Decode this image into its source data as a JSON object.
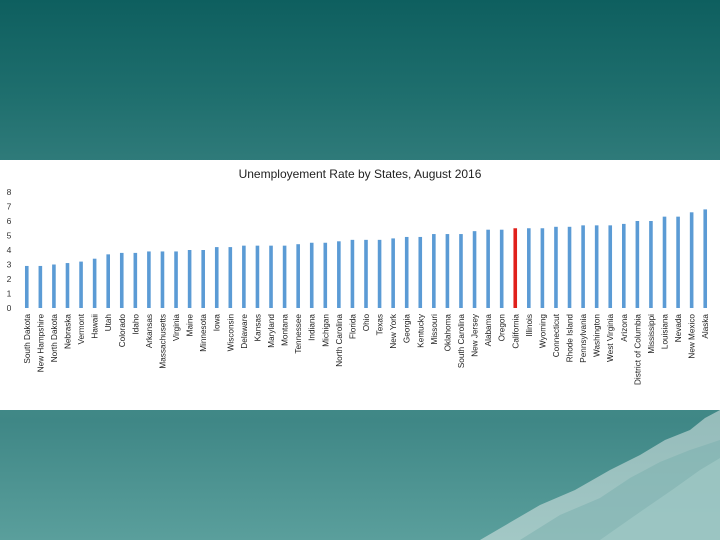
{
  "slide": {
    "background_top": "#0e5f5f",
    "background_bottom": "#5a9f9c",
    "decoration": "mountain-graphic"
  },
  "chart_data": {
    "type": "bar",
    "title": "Unemployement Rate by States, August 2016",
    "xlabel": "",
    "ylabel": "",
    "ylim": [
      0,
      8
    ],
    "yticks": [
      0,
      1,
      2,
      3,
      4,
      5,
      6,
      7,
      8
    ],
    "bar_color": "#5b9bd5",
    "highlight_color": "#e0201b",
    "highlight": "California",
    "categories": [
      "South Dakota",
      "New Hampshire",
      "North Dakota",
      "Nebraska",
      "Vermont",
      "Hawaii",
      "Utah",
      "Colorado",
      "Idaho",
      "Arkansas",
      "Massachusetts",
      "Virginia",
      "Maine",
      "Minnesota",
      "Iowa",
      "Wisconsin",
      "Delaware",
      "Kansas",
      "Maryland",
      "Montana",
      "Tennessee",
      "Indiana",
      "Michigan",
      "North Carolina",
      "Florida",
      "Ohio",
      "Texas",
      "New York",
      "Georgia",
      "Kentucky",
      "Missouri",
      "Oklahoma",
      "South Carolina",
      "New Jersey",
      "Alabama",
      "Oregon",
      "California",
      "Illinois",
      "Wyoming",
      "Connecticut",
      "Rhode Island",
      "Pennsylvania",
      "Washington",
      "West Virginia",
      "Arizona",
      "District of Columbia",
      "Mississippi",
      "Louisiana",
      "Nevada",
      "New Mexico",
      "Alaska"
    ],
    "values": [
      2.9,
      2.9,
      3.0,
      3.1,
      3.2,
      3.4,
      3.7,
      3.8,
      3.8,
      3.9,
      3.9,
      3.9,
      4.0,
      4.0,
      4.2,
      4.2,
      4.3,
      4.3,
      4.3,
      4.3,
      4.4,
      4.5,
      4.5,
      4.6,
      4.7,
      4.7,
      4.7,
      4.8,
      4.9,
      4.9,
      5.1,
      5.1,
      5.1,
      5.3,
      5.4,
      5.4,
      5.5,
      5.5,
      5.5,
      5.6,
      5.6,
      5.7,
      5.7,
      5.7,
      5.8,
      6.0,
      6.0,
      6.3,
      6.3,
      6.6,
      6.8
    ]
  }
}
